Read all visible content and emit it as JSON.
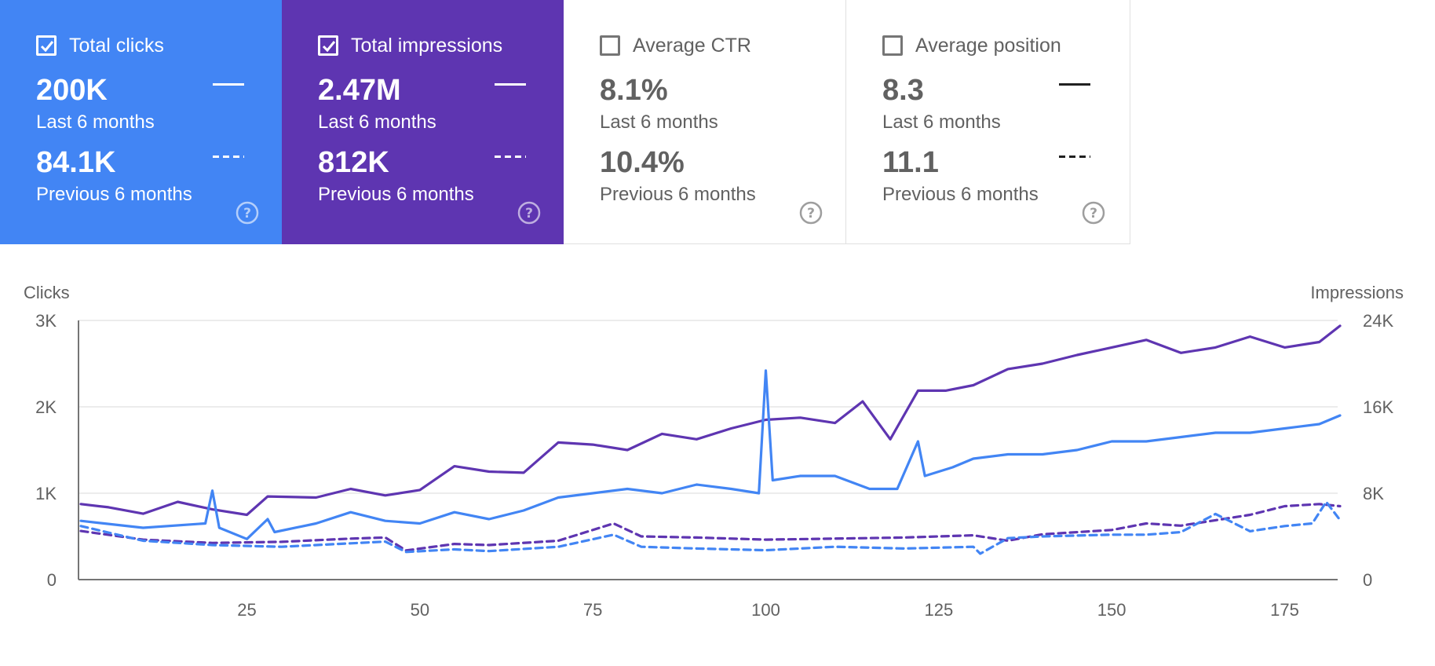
{
  "cards": [
    {
      "title": "Total clicks",
      "checked": true,
      "value_current": "200K",
      "label_current": "Last 6 months",
      "value_previous": "84.1K",
      "label_previous": "Previous 6 months",
      "bg": "#4285f4"
    },
    {
      "title": "Total impressions",
      "checked": true,
      "value_current": "2.47M",
      "label_current": "Last 6 months",
      "value_previous": "812K",
      "label_previous": "Previous 6 months",
      "bg": "#5e35b1"
    },
    {
      "title": "Average CTR",
      "checked": false,
      "value_current": "8.1%",
      "label_current": "Last 6 months",
      "value_previous": "10.4%",
      "label_previous": "Previous 6 months",
      "bg": "#ffffff"
    },
    {
      "title": "Average position",
      "checked": false,
      "value_current": "8.3",
      "label_current": "Last 6 months",
      "value_previous": "11.1",
      "label_previous": "Previous 6 months",
      "bg": "#ffffff"
    }
  ],
  "icons": {
    "checkbox": "checkbox-icon",
    "help": "help-icon"
  },
  "chart_data": {
    "type": "line",
    "ylabel_left": "Clicks",
    "ylabel_right": "Impressions",
    "yticks_left": [
      "0",
      "1K",
      "2K",
      "3K"
    ],
    "yticks_right": [
      "0",
      "8K",
      "16K",
      "24K"
    ],
    "xticks": [
      "25",
      "50",
      "75",
      "100",
      "125",
      "150",
      "175"
    ],
    "x_range": [
      1,
      183
    ],
    "ylim_left": [
      0,
      3000
    ],
    "ylim_right": [
      0,
      24000
    ],
    "grid": true,
    "series": [
      {
        "name": "Total impressions",
        "period": "Last 6 months",
        "axis": "right",
        "style": "solid",
        "color": "#5e35b1",
        "points": [
          [
            1,
            7000
          ],
          [
            5,
            6700
          ],
          [
            10,
            6100
          ],
          [
            15,
            7200
          ],
          [
            20,
            6500
          ],
          [
            25,
            6000
          ],
          [
            28,
            7700
          ],
          [
            35,
            7600
          ],
          [
            40,
            8400
          ],
          [
            45,
            7800
          ],
          [
            50,
            8300
          ],
          [
            55,
            10500
          ],
          [
            60,
            10000
          ],
          [
            65,
            9900
          ],
          [
            70,
            12700
          ],
          [
            75,
            12500
          ],
          [
            80,
            12000
          ],
          [
            85,
            13500
          ],
          [
            90,
            13000
          ],
          [
            95,
            14000
          ],
          [
            100,
            14800
          ],
          [
            105,
            15000
          ],
          [
            110,
            14500
          ],
          [
            114,
            16500
          ],
          [
            118,
            13000
          ],
          [
            122,
            17500
          ],
          [
            126,
            17500
          ],
          [
            130,
            18000
          ],
          [
            135,
            19500
          ],
          [
            140,
            20000
          ],
          [
            145,
            20800
          ],
          [
            150,
            21500
          ],
          [
            155,
            22200
          ],
          [
            160,
            21000
          ],
          [
            165,
            21500
          ],
          [
            170,
            22500
          ],
          [
            175,
            21500
          ],
          [
            180,
            22000
          ],
          [
            183,
            23500
          ]
        ]
      },
      {
        "name": "Total clicks",
        "period": "Last 6 months",
        "axis": "left",
        "style": "solid",
        "color": "#4285f4",
        "points": [
          [
            1,
            680
          ],
          [
            10,
            600
          ],
          [
            19,
            650
          ],
          [
            20,
            1030
          ],
          [
            21,
            600
          ],
          [
            25,
            470
          ],
          [
            28,
            700
          ],
          [
            29,
            550
          ],
          [
            35,
            650
          ],
          [
            40,
            780
          ],
          [
            45,
            680
          ],
          [
            50,
            650
          ],
          [
            55,
            780
          ],
          [
            60,
            700
          ],
          [
            65,
            800
          ],
          [
            70,
            950
          ],
          [
            75,
            1000
          ],
          [
            80,
            1050
          ],
          [
            85,
            1000
          ],
          [
            90,
            1100
          ],
          [
            95,
            1050
          ],
          [
            99,
            1000
          ],
          [
            100,
            2420
          ],
          [
            101,
            1150
          ],
          [
            105,
            1200
          ],
          [
            110,
            1200
          ],
          [
            115,
            1050
          ],
          [
            119,
            1050
          ],
          [
            122,
            1600
          ],
          [
            123,
            1200
          ],
          [
            127,
            1300
          ],
          [
            130,
            1400
          ],
          [
            135,
            1450
          ],
          [
            140,
            1450
          ],
          [
            145,
            1500
          ],
          [
            150,
            1600
          ],
          [
            155,
            1600
          ],
          [
            160,
            1650
          ],
          [
            165,
            1700
          ],
          [
            170,
            1700
          ],
          [
            175,
            1750
          ],
          [
            180,
            1800
          ],
          [
            183,
            1900
          ]
        ]
      },
      {
        "name": "Total impressions",
        "period": "Previous 6 months",
        "axis": "right",
        "style": "dashed",
        "color": "#5e35b1",
        "points": [
          [
            1,
            4500
          ],
          [
            10,
            3700
          ],
          [
            20,
            3400
          ],
          [
            30,
            3500
          ],
          [
            40,
            3800
          ],
          [
            45,
            3900
          ],
          [
            48,
            2700
          ],
          [
            55,
            3300
          ],
          [
            60,
            3200
          ],
          [
            70,
            3600
          ],
          [
            78,
            5200
          ],
          [
            82,
            4000
          ],
          [
            90,
            3900
          ],
          [
            100,
            3700
          ],
          [
            110,
            3800
          ],
          [
            120,
            3900
          ],
          [
            130,
            4100
          ],
          [
            135,
            3600
          ],
          [
            140,
            4200
          ],
          [
            150,
            4600
          ],
          [
            155,
            5200
          ],
          [
            160,
            5000
          ],
          [
            165,
            5500
          ],
          [
            170,
            6000
          ],
          [
            175,
            6800
          ],
          [
            180,
            7000
          ],
          [
            183,
            6800
          ]
        ]
      },
      {
        "name": "Total clicks",
        "period": "Previous 6 months",
        "axis": "left",
        "style": "dashed",
        "color": "#4285f4",
        "points": [
          [
            1,
            620
          ],
          [
            10,
            450
          ],
          [
            20,
            400
          ],
          [
            30,
            380
          ],
          [
            40,
            420
          ],
          [
            45,
            440
          ],
          [
            48,
            320
          ],
          [
            55,
            350
          ],
          [
            60,
            330
          ],
          [
            70,
            380
          ],
          [
            78,
            520
          ],
          [
            82,
            380
          ],
          [
            90,
            360
          ],
          [
            100,
            340
          ],
          [
            110,
            380
          ],
          [
            120,
            360
          ],
          [
            130,
            380
          ],
          [
            131,
            300
          ],
          [
            135,
            480
          ],
          [
            140,
            500
          ],
          [
            150,
            520
          ],
          [
            155,
            520
          ],
          [
            160,
            550
          ],
          [
            165,
            760
          ],
          [
            170,
            560
          ],
          [
            175,
            620
          ],
          [
            179,
            650
          ],
          [
            181,
            900
          ],
          [
            183,
            690
          ]
        ]
      }
    ]
  }
}
